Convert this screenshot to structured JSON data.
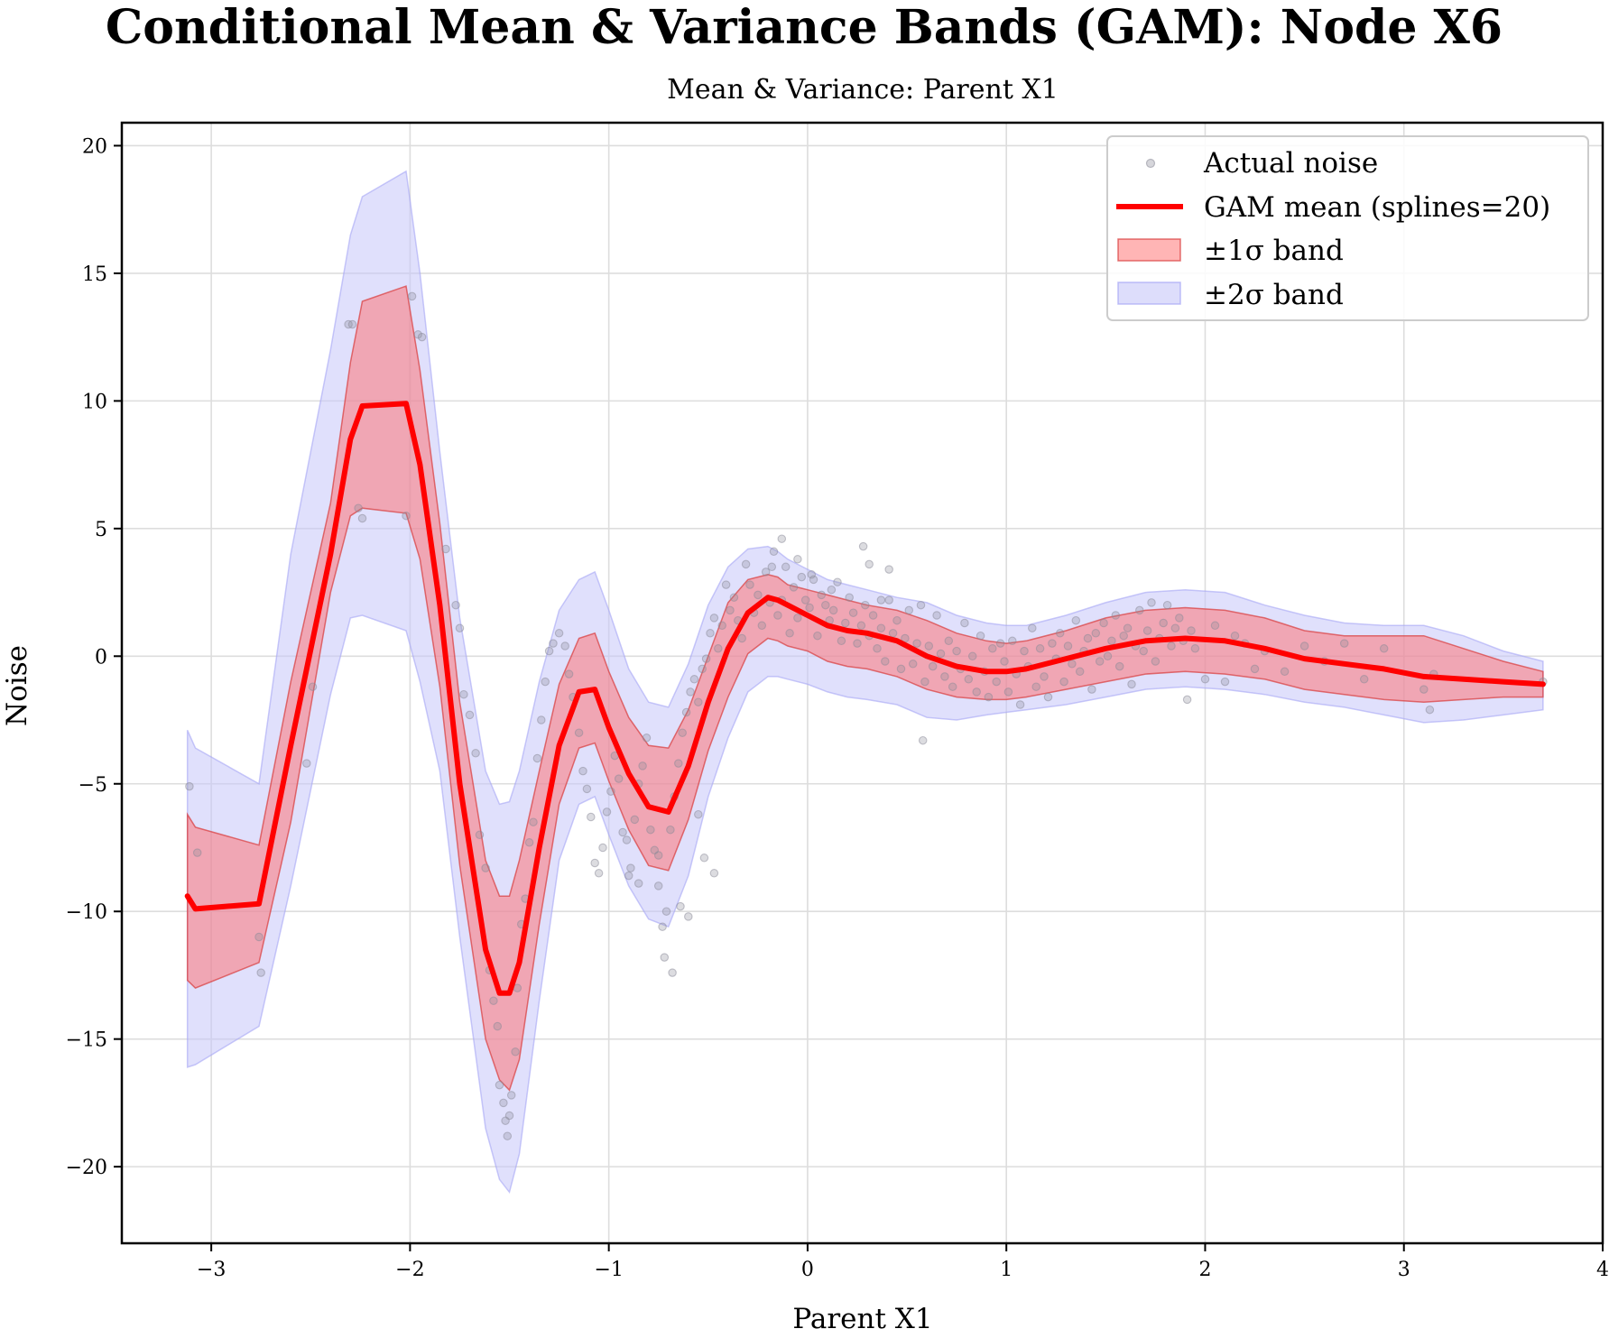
{
  "chart_data": {
    "type": "line",
    "title": "Conditional Mean & Variance Bands (GAM): Node X6",
    "subtitle": "Mean & Variance: Parent X1",
    "xlabel": "Parent X1",
    "ylabel": "Noise",
    "xlim": [
      -3.45,
      4.0
    ],
    "ylim": [
      -23.0,
      20.9
    ],
    "xticks": [
      -3,
      -2,
      -1,
      0,
      1,
      2,
      3,
      4
    ],
    "xtick_labels": [
      "−3",
      "−2",
      "−1",
      "0",
      "1",
      "2",
      "3",
      "4"
    ],
    "yticks": [
      20,
      15,
      10,
      5,
      0,
      -5,
      -10,
      -15,
      -20
    ],
    "ytick_labels": [
      "20",
      "15",
      "10",
      "5",
      "0",
      "−5",
      "−10",
      "−15",
      "−20"
    ],
    "grid": true,
    "legend_position": "upper right",
    "legend": [
      {
        "label": "Actual noise",
        "kind": "scatter"
      },
      {
        "label": "GAM mean (splines=20)",
        "kind": "line"
      },
      {
        "label": "±1σ band",
        "kind": "band1"
      },
      {
        "label": "±2σ band",
        "kind": "band2"
      }
    ],
    "colors": {
      "mean": "#ff0000",
      "band1_fill": "#ff6b6b",
      "band1_edge": "#d83a3a",
      "band2_fill": "#c6c6f9",
      "band2_edge": "#a5a5f5",
      "scatter": "#8a8a98"
    },
    "curve": {
      "x": [
        -3.12,
        -3.08,
        -2.76,
        -2.6,
        -2.4,
        -2.3,
        -2.24,
        -2.02,
        -1.95,
        -1.85,
        -1.75,
        -1.62,
        -1.55,
        -1.5,
        -1.45,
        -1.35,
        -1.25,
        -1.15,
        -1.07,
        -1.0,
        -0.9,
        -0.8,
        -0.7,
        -0.6,
        -0.5,
        -0.4,
        -0.3,
        -0.2,
        -0.15,
        -0.1,
        0.0,
        0.1,
        0.2,
        0.3,
        0.45,
        0.6,
        0.75,
        0.9,
        1.0,
        1.1,
        1.3,
        1.5,
        1.7,
        1.9,
        2.1,
        2.3,
        2.5,
        2.7,
        2.9,
        3.1,
        3.3,
        3.5,
        3.7
      ],
      "mean": [
        -9.4,
        -9.9,
        -9.7,
        -3.5,
        4.0,
        8.5,
        9.8,
        9.9,
        7.5,
        2.0,
        -5.0,
        -11.5,
        -13.2,
        -13.2,
        -12.0,
        -7.5,
        -3.5,
        -1.4,
        -1.3,
        -2.8,
        -4.6,
        -5.9,
        -6.1,
        -4.3,
        -1.8,
        0.3,
        1.7,
        2.3,
        2.2,
        2.0,
        1.6,
        1.2,
        1.0,
        0.9,
        0.6,
        0.0,
        -0.4,
        -0.6,
        -0.6,
        -0.5,
        -0.1,
        0.3,
        0.6,
        0.7,
        0.6,
        0.3,
        -0.1,
        -0.3,
        -0.5,
        -0.8,
        -0.9,
        -1.0,
        -1.1
      ],
      "band1_low": [
        -12.7,
        -13.0,
        -12.0,
        -6.5,
        2.5,
        5.5,
        5.8,
        5.6,
        3.8,
        -1.2,
        -8.2,
        -15.0,
        -16.6,
        -17.0,
        -15.8,
        -10.5,
        -5.8,
        -3.6,
        -3.4,
        -4.9,
        -6.8,
        -8.2,
        -8.4,
        -6.4,
        -3.7,
        -1.6,
        0.1,
        0.7,
        0.6,
        0.4,
        0.2,
        -0.2,
        -0.4,
        -0.5,
        -0.8,
        -1.3,
        -1.6,
        -1.7,
        -1.7,
        -1.6,
        -1.3,
        -1.0,
        -0.7,
        -0.6,
        -0.7,
        -0.9,
        -1.3,
        -1.5,
        -1.7,
        -1.8,
        -1.7,
        -1.6,
        -1.6
      ],
      "band1_high": [
        -6.2,
        -6.7,
        -7.4,
        -1.0,
        6.0,
        11.5,
        13.9,
        14.5,
        11.2,
        5.2,
        -1.8,
        -8.0,
        -9.4,
        -9.4,
        -8.0,
        -4.5,
        -1.1,
        0.7,
        0.9,
        -0.6,
        -2.4,
        -3.5,
        -3.6,
        -2.1,
        0.0,
        2.1,
        3.0,
        3.2,
        3.1,
        2.8,
        2.6,
        2.4,
        2.2,
        2.0,
        1.8,
        1.4,
        0.9,
        0.6,
        0.5,
        0.6,
        1.0,
        1.5,
        1.8,
        1.9,
        1.8,
        1.5,
        1.0,
        0.8,
        0.8,
        0.8,
        0.3,
        -0.2,
        -0.6
      ],
      "band2_low": [
        -16.1,
        -16.0,
        -14.5,
        -9.0,
        -1.5,
        1.5,
        1.6,
        1.0,
        -1.0,
        -4.5,
        -11.0,
        -18.5,
        -20.5,
        -21.0,
        -19.5,
        -13.5,
        -8.0,
        -5.8,
        -5.5,
        -7.0,
        -9.0,
        -10.3,
        -10.6,
        -8.6,
        -5.5,
        -3.2,
        -1.4,
        -0.8,
        -0.8,
        -0.9,
        -1.1,
        -1.4,
        -1.6,
        -1.7,
        -1.9,
        -2.4,
        -2.5,
        -2.3,
        -2.2,
        -2.1,
        -1.9,
        -1.6,
        -1.3,
        -1.2,
        -1.3,
        -1.5,
        -1.8,
        -2.0,
        -2.3,
        -2.6,
        -2.5,
        -2.3,
        -2.1
      ],
      "band2_high": [
        -2.9,
        -3.6,
        -5.0,
        4.0,
        12.0,
        16.5,
        18.0,
        19.0,
        15.0,
        8.0,
        1.5,
        -4.5,
        -5.8,
        -5.7,
        -4.5,
        -1.0,
        1.8,
        3.0,
        3.3,
        1.8,
        -0.5,
        -1.8,
        -2.0,
        -0.3,
        2.0,
        3.5,
        4.2,
        4.3,
        4.1,
        3.8,
        3.4,
        3.0,
        2.8,
        2.6,
        2.3,
        2.1,
        1.6,
        1.3,
        1.2,
        1.2,
        1.6,
        2.1,
        2.5,
        2.6,
        2.5,
        2.0,
        1.6,
        1.3,
        1.2,
        1.2,
        0.8,
        0.2,
        -0.2
      ]
    },
    "scatter": {
      "x": [
        -3.11,
        -3.07,
        -2.76,
        -2.75,
        -2.52,
        -2.49,
        -2.31,
        -2.29,
        -2.26,
        -2.24,
        -2.02,
        -1.99,
        -1.96,
        -1.94,
        -1.82,
        -1.77,
        -1.75,
        -1.73,
        -1.7,
        -1.67,
        -1.65,
        -1.62,
        -1.6,
        -1.58,
        -1.56,
        -1.55,
        -1.53,
        -1.52,
        -1.51,
        -1.5,
        -1.49,
        -1.47,
        -1.46,
        -1.44,
        -1.42,
        -1.4,
        -1.38,
        -1.36,
        -1.34,
        -1.32,
        -1.3,
        -1.28,
        -1.25,
        -1.22,
        -1.2,
        -1.18,
        -1.15,
        -1.13,
        -1.11,
        -1.09,
        -1.07,
        -1.05,
        -1.03,
        -1.01,
        -0.99,
        -0.97,
        -0.95,
        -0.93,
        -0.91,
        -0.89,
        -0.87,
        -0.85,
        -0.83,
        -0.81,
        -0.79,
        -0.77,
        -0.75,
        -0.73,
        -0.71,
        -0.69,
        -0.67,
        -0.65,
        -0.63,
        -0.61,
        -0.59,
        -0.57,
        -0.55,
        -0.53,
        -0.51,
        -0.49,
        -0.47,
        -0.45,
        -0.43,
        -0.41,
        -0.39,
        -0.37,
        -0.35,
        -0.33,
        -0.31,
        -0.29,
        -0.27,
        -0.25,
        -0.23,
        -0.21,
        -0.19,
        -0.17,
        -0.15,
        -0.13,
        -0.11,
        -0.09,
        -0.07,
        -0.05,
        -0.03,
        -0.01,
        0.01,
        0.03,
        0.05,
        0.07,
        0.09,
        0.11,
        0.13,
        0.15,
        0.17,
        0.19,
        0.21,
        0.23,
        0.25,
        0.27,
        0.29,
        0.31,
        0.33,
        0.35,
        0.37,
        0.39,
        0.41,
        0.43,
        0.45,
        0.47,
        0.49,
        0.51,
        0.53,
        0.55,
        0.57,
        0.59,
        0.61,
        0.63,
        0.65,
        0.67,
        0.69,
        0.71,
        0.73,
        0.75,
        0.77,
        0.79,
        0.81,
        0.83,
        0.85,
        0.87,
        0.89,
        0.91,
        0.93,
        0.95,
        0.97,
        0.99,
        1.01,
        1.03,
        1.05,
        1.07,
        1.09,
        1.11,
        1.13,
        1.15,
        1.17,
        1.19,
        1.21,
        1.23,
        1.25,
        1.27,
        1.29,
        1.31,
        1.33,
        1.35,
        1.37,
        1.39,
        1.41,
        1.43,
        1.45,
        1.47,
        1.49,
        1.51,
        1.53,
        1.55,
        1.57,
        1.59,
        1.61,
        1.63,
        1.65,
        1.67,
        1.69,
        1.71,
        1.73,
        1.75,
        1.77,
        1.79,
        1.81,
        1.83,
        1.85,
        1.87,
        1.89,
        1.91,
        1.93,
        1.95,
        2.0,
        2.05,
        2.1,
        2.15,
        2.2,
        2.25,
        2.3,
        2.4,
        2.5,
        2.6,
        2.7,
        2.8,
        2.9,
        3.1,
        3.13,
        3.15,
        3.7,
        -0.68,
        -0.72,
        -0.9,
        -0.85,
        -0.75,
        -0.64,
        -0.6,
        -0.55,
        -0.52,
        -0.47,
        0.28,
        0.31,
        0.58,
        -0.05,
        0.02,
        0.12,
        0.41,
        0.37,
        -0.13,
        -0.18
      ],
      "y": [
        -5.1,
        -7.7,
        -11.0,
        -12.4,
        -4.2,
        -1.2,
        13.0,
        13.0,
        5.8,
        5.4,
        5.5,
        14.1,
        12.6,
        12.5,
        4.2,
        2.0,
        1.1,
        -1.5,
        -2.3,
        -3.8,
        -7.0,
        -8.3,
        -12.3,
        -13.5,
        -14.5,
        -16.8,
        -17.5,
        -18.2,
        -18.8,
        -18.0,
        -17.2,
        -15.5,
        -13.0,
        -10.5,
        -9.5,
        -7.3,
        -6.5,
        -4.0,
        -2.5,
        -1.0,
        0.2,
        0.5,
        0.9,
        0.4,
        -0.7,
        -1.6,
        -3.0,
        -4.5,
        -5.2,
        -6.3,
        -8.1,
        -8.5,
        -7.5,
        -6.1,
        -5.3,
        -3.9,
        -4.8,
        -6.9,
        -7.2,
        -8.3,
        -6.4,
        -5.0,
        -4.3,
        -3.2,
        -6.8,
        -7.6,
        -9.0,
        -10.6,
        -10.0,
        -6.8,
        -5.5,
        -4.2,
        -3.0,
        -2.2,
        -1.4,
        -0.9,
        -1.8,
        -0.5,
        -0.1,
        0.9,
        1.5,
        0.3,
        1.2,
        2.8,
        1.8,
        2.3,
        1.4,
        0.7,
        3.6,
        2.8,
        1.7,
        2.4,
        1.2,
        3.3,
        2.1,
        4.1,
        1.6,
        2.2,
        3.5,
        0.9,
        2.7,
        1.5,
        3.1,
        2.2,
        1.9,
        3.0,
        0.8,
        2.4,
        2.0,
        1.4,
        1.8,
        2.9,
        0.6,
        1.3,
        2.3,
        1.7,
        0.5,
        1.2,
        2.0,
        0.8,
        1.6,
        0.3,
        1.1,
        -0.2,
        2.2,
        0.9,
        1.4,
        -0.5,
        0.7,
        1.8,
        -0.3,
        0.5,
        2.0,
        -1.0,
        0.4,
        -0.4,
        1.6,
        0.1,
        -0.8,
        0.6,
        -1.2,
        0.2,
        -0.5,
        1.3,
        -0.9,
        0.0,
        -1.4,
        0.8,
        -0.6,
        -1.6,
        0.3,
        -1.0,
        0.5,
        -0.2,
        -1.4,
        0.6,
        -0.7,
        -1.9,
        0.2,
        -0.4,
        1.1,
        -1.2,
        0.3,
        -0.8,
        -1.6,
        0.5,
        -0.1,
        0.9,
        -1.0,
        0.4,
        -0.3,
        1.4,
        -0.6,
        0.2,
        0.7,
        -1.3,
        0.9,
        -0.2,
        1.3,
        0.0,
        0.6,
        1.6,
        -0.4,
        0.8,
        1.1,
        -1.1,
        0.4,
        1.8,
        0.2,
        1.0,
        2.1,
        -0.2,
        0.7,
        1.3,
        2.0,
        0.4,
        1.1,
        1.5,
        0.6,
        -1.7,
        1.0,
        0.3,
        -0.9,
        1.2,
        -1.0,
        0.8,
        0.5,
        -0.5,
        0.2,
        -0.6,
        0.4,
        -0.2,
        0.5,
        -0.9,
        0.3,
        -1.3,
        -2.1,
        -0.7,
        -1.0,
        -12.4,
        -11.8,
        -8.6,
        -8.9,
        -7.8,
        -9.8,
        -10.2,
        -6.2,
        -7.9,
        -8.5,
        4.3,
        3.6,
        -3.3,
        3.8,
        3.2,
        2.6,
        3.4,
        2.2,
        4.6,
        3.5
      ]
    }
  }
}
